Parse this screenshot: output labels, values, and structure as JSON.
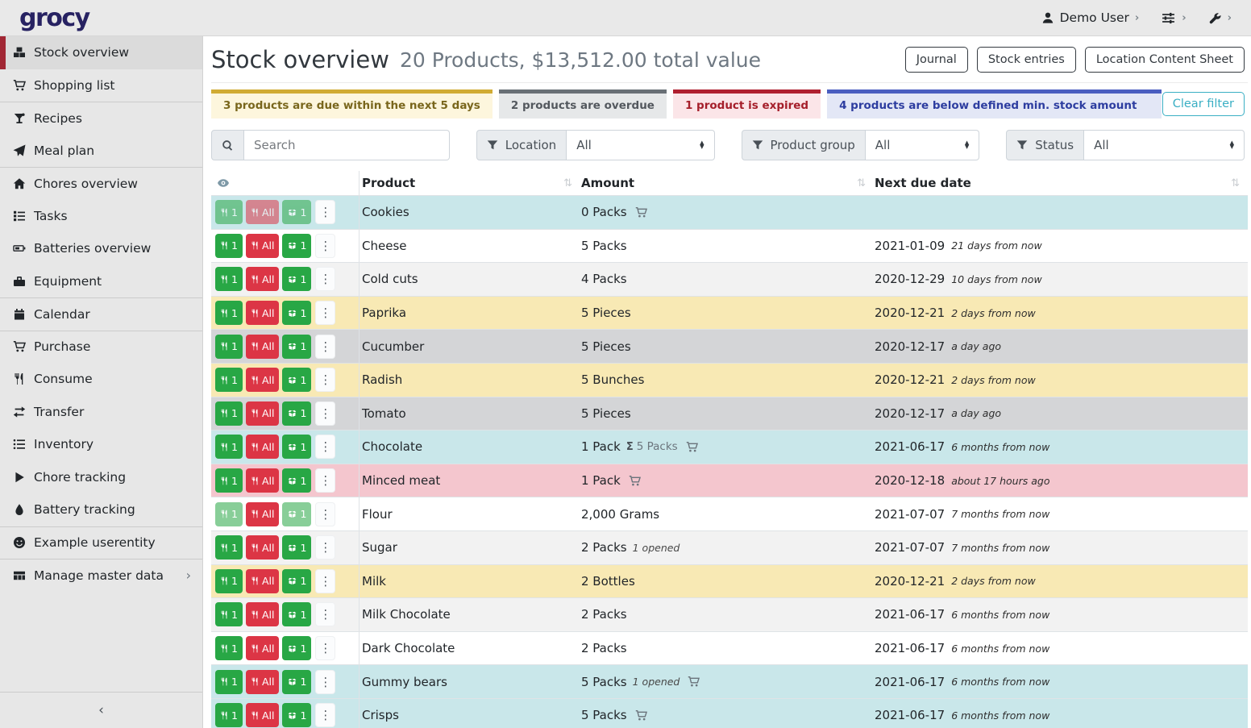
{
  "topbar": {
    "logo": "grocy",
    "user_label": "Demo User"
  },
  "sidebar": {
    "items": [
      {
        "label": "Stock overview",
        "icon": "boxes",
        "active": true
      },
      {
        "label": "Shopping list",
        "icon": "cart"
      },
      {
        "label": "Recipes",
        "icon": "cocktail",
        "divider": true
      },
      {
        "label": "Meal plan",
        "icon": "paper-plane"
      },
      {
        "label": "Chores overview",
        "icon": "home",
        "divider": true
      },
      {
        "label": "Tasks",
        "icon": "tasks"
      },
      {
        "label": "Batteries overview",
        "icon": "battery"
      },
      {
        "label": "Equipment",
        "icon": "toolbox"
      },
      {
        "label": "Calendar",
        "icon": "calendar",
        "divider": true
      },
      {
        "label": "Purchase",
        "icon": "cart",
        "divider": true
      },
      {
        "label": "Consume",
        "icon": "utensils"
      },
      {
        "label": "Transfer",
        "icon": "exchange"
      },
      {
        "label": "Inventory",
        "icon": "list"
      },
      {
        "label": "Chore tracking",
        "icon": "play"
      },
      {
        "label": "Battery tracking",
        "icon": "tint"
      },
      {
        "label": "Example userentity",
        "icon": "smiley",
        "divider": true
      },
      {
        "label": "Manage master data",
        "icon": "table",
        "divider": true,
        "chevron": true
      }
    ]
  },
  "header": {
    "title": "Stock overview",
    "subtitle": "20 Products, $13,512.00 total value",
    "buttons": [
      "Journal",
      "Stock entries",
      "Location Content Sheet"
    ]
  },
  "banners": [
    {
      "type": "due-soon",
      "text": "3 products are due within the next 5 days",
      "border": "#d1ab33",
      "bg": "#fdf6dd",
      "color": "#79661c"
    },
    {
      "type": "overdue",
      "text": "2 products are overdue",
      "border": "#697076",
      "bg": "#e6e8e9",
      "color": "#53585e"
    },
    {
      "type": "expired",
      "text": "1 product is expired",
      "border": "#b02030",
      "bg": "#fbe5e8",
      "color": "#a51e2a"
    },
    {
      "type": "below-min-stock",
      "text": "4 products are below defined min. stock amount",
      "border": "#4a5ec0",
      "bg": "#e3e7f6",
      "color": "#2d3da0",
      "wide": true
    }
  ],
  "clear_filter_label": "Clear filter",
  "filters": {
    "search_placeholder": "Search",
    "groups": [
      {
        "label": "Location",
        "value": "All"
      },
      {
        "label": "Product group",
        "value": "All"
      },
      {
        "label": "Status",
        "value": "All"
      }
    ]
  },
  "table": {
    "columns": [
      "Product",
      "Amount",
      "Next due date"
    ],
    "row_buttons": {
      "consume_one": "1",
      "consume_all": "All",
      "open_one": "1"
    },
    "rows": [
      {
        "product": "Cookies",
        "amount": "0 Packs",
        "cart": true,
        "date": "",
        "relative": "",
        "status": "info",
        "disabled_all": true
      },
      {
        "product": "Cheese",
        "amount": "5 Packs",
        "date": "2021-01-09",
        "relative": "21 days from now"
      },
      {
        "product": "Cold cuts",
        "amount": "4 Packs",
        "date": "2020-12-29",
        "relative": "10 days from now",
        "stripe": true
      },
      {
        "product": "Paprika",
        "amount": "5 Pieces",
        "date": "2020-12-21",
        "relative": "2 days from now",
        "status": "warning"
      },
      {
        "product": "Cucumber",
        "amount": "5 Pieces",
        "date": "2020-12-17",
        "relative": "a day ago",
        "status": "secondary"
      },
      {
        "product": "Radish",
        "amount": "5 Bunches",
        "date": "2020-12-21",
        "relative": "2 days from now",
        "status": "warning"
      },
      {
        "product": "Tomato",
        "amount": "5 Pieces",
        "date": "2020-12-17",
        "relative": "a day ago",
        "status": "secondary"
      },
      {
        "product": "Chocolate",
        "amount": "1 Pack",
        "sum": "5 Packs",
        "cart": true,
        "date": "2021-06-17",
        "relative": "6 months from now",
        "status": "info"
      },
      {
        "product": "Minced meat",
        "amount": "1 Pack",
        "cart": true,
        "date": "2020-12-18",
        "relative": "about 17 hours ago",
        "status": "danger"
      },
      {
        "product": "Flour",
        "amount": "2,000 Grams",
        "date": "2021-07-07",
        "relative": "7 months from now",
        "disabled_green": true
      },
      {
        "product": "Sugar",
        "amount": "2 Packs",
        "opened": "1 opened",
        "date": "2021-07-07",
        "relative": "7 months from now",
        "stripe": true
      },
      {
        "product": "Milk",
        "amount": "2 Bottles",
        "date": "2020-12-21",
        "relative": "2 days from now",
        "status": "warning"
      },
      {
        "product": "Milk Chocolate",
        "amount": "2 Packs",
        "date": "2021-06-17",
        "relative": "6 months from now",
        "stripe": true
      },
      {
        "product": "Dark Chocolate",
        "amount": "2 Packs",
        "date": "2021-06-17",
        "relative": "6 months from now"
      },
      {
        "product": "Gummy bears",
        "amount": "5 Packs",
        "opened": "1 opened",
        "cart": true,
        "date": "2021-06-17",
        "relative": "6 months from now",
        "status": "info"
      },
      {
        "product": "Crisps",
        "amount": "5 Packs",
        "cart": true,
        "date": "2021-06-17",
        "relative": "6 months from now",
        "status": "info"
      }
    ],
    "partial_row": {
      "status": "info"
    }
  },
  "colors": {
    "consume_green": "#28a745",
    "consume_red": "#dc3545",
    "row_info": "#c9e7ea",
    "row_warning": "#f8e9b4",
    "row_secondary": "#d4d5d7",
    "row_danger": "#f4c6ce",
    "row_stripe": "#f2f2f2",
    "active_nav_marker": "#a12734",
    "logo": "#272262",
    "clear_filter_accent": "#3aafc4"
  }
}
